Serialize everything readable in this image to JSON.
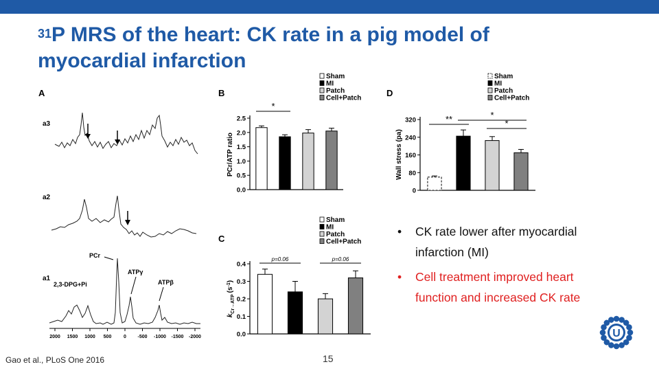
{
  "slide": {
    "title_sup": "31",
    "title_main": "P MRS of the heart: CK rate in a pig model of",
    "title_line2": "myocardial infarction",
    "citation": "Gao et al., PLoS One 2016",
    "page_number": "15",
    "colors": {
      "brand": "#1f5aa6",
      "accent": "#e02020"
    }
  },
  "bullets": [
    {
      "text_line1": "CK rate lower after myocardial",
      "text_line2": "infarction (MI)",
      "color": "#111111"
    },
    {
      "text_line1": "Cell treatment improved heart",
      "text_line2": "function and increased CK rate",
      "color": "#e02020"
    }
  ],
  "panel_a": {
    "label": "A",
    "traces": [
      "a3",
      "a2",
      "a1"
    ],
    "peaks": {
      "pcr": "PCr",
      "atp_gamma": "ATPγ",
      "atp_beta": "ATPβ",
      "dpg": "2,3-DPG+Pi"
    },
    "x_ticks": [
      "2000",
      "1500",
      "1000",
      "500",
      "0",
      "-500",
      "-1000",
      "-1500",
      "-2000"
    ]
  },
  "chart_data": [
    {
      "type": "bar",
      "panel": "B",
      "categories": [
        "Sham",
        "MI",
        "Patch",
        "Cell+Patch"
      ],
      "values": [
        2.17,
        1.85,
        1.98,
        2.05
      ],
      "errors": [
        0.06,
        0.07,
        0.12,
        0.1
      ],
      "colors": [
        "#ffffff",
        "#000000",
        "#d3d3d3",
        "#808080"
      ],
      "ylabel": "PCr/ATP ratio",
      "ylim": [
        0,
        2.5
      ],
      "yticks": [
        "0.0",
        "0.5",
        "1.0",
        "1.5",
        "2.0",
        "2.5"
      ],
      "significance": [
        {
          "from": 0,
          "to": 1,
          "label": "*"
        }
      ],
      "legend": [
        "Sham",
        "MI",
        "Patch",
        "Cell+Patch"
      ]
    },
    {
      "type": "bar",
      "panel": "C",
      "categories": [
        "Sham",
        "MI",
        "Patch",
        "Cell+Patch"
      ],
      "values": [
        0.34,
        0.24,
        0.2,
        0.32
      ],
      "errors": [
        0.03,
        0.06,
        0.03,
        0.04
      ],
      "colors": [
        "#ffffff",
        "#000000",
        "#d3d3d3",
        "#808080"
      ],
      "ylabel_main": "k",
      "ylabel_sub": "Cr→ATP",
      "ylabel_unit": "(s",
      "ylabel_unit_sup": "-1",
      "ylabel_unit_end": ")",
      "ylim": [
        0,
        0.4
      ],
      "yticks": [
        "0.0",
        "0.1",
        "0.2",
        "0.3",
        "0.4"
      ],
      "significance": [
        {
          "from": 0,
          "to": 1,
          "label": "p=0.06"
        },
        {
          "from": 2,
          "to": 3,
          "label": "p=0.06"
        }
      ],
      "legend": [
        "Sham",
        "MI",
        "Patch",
        "Cell+Patch"
      ]
    },
    {
      "type": "bar",
      "panel": "D",
      "categories": [
        "Sham",
        "MI",
        "Patch",
        "Cell+Patch"
      ],
      "values": [
        60,
        245,
        225,
        170
      ],
      "errors": [
        5,
        28,
        18,
        15
      ],
      "colors": [
        "#ffffff",
        "#000000",
        "#d3d3d3",
        "#808080"
      ],
      "ylabel": "Wall stress (pa)",
      "ylim": [
        0,
        320
      ],
      "yticks": [
        "0",
        "80",
        "160",
        "240",
        "320"
      ],
      "significance": [
        {
          "from": 0,
          "to": 1,
          "label": "**"
        },
        {
          "from": 1,
          "to": 3,
          "label": "*"
        },
        {
          "from": 2,
          "to": 3,
          "label": "*"
        }
      ],
      "legend": [
        "Sham",
        "MI",
        "Patch",
        "Cell+Patch"
      ]
    }
  ]
}
